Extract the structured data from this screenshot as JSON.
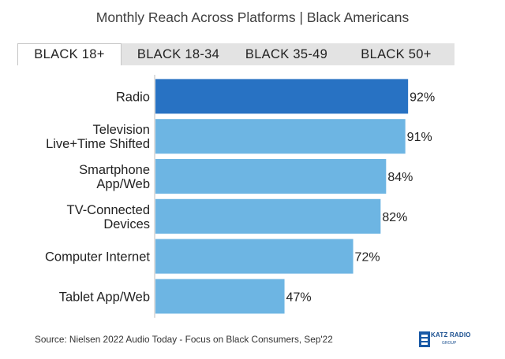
{
  "chart_data": {
    "type": "bar",
    "orientation": "horizontal",
    "title": "Monthly Reach Across Platforms | Black Americans",
    "categories": [
      [
        "Radio"
      ],
      [
        "Television",
        "Live+Time Shifted"
      ],
      [
        "Smartphone",
        "App/Web"
      ],
      [
        "TV-Connected",
        "Devices"
      ],
      [
        "Computer Internet"
      ],
      [
        "Tablet App/Web"
      ]
    ],
    "values": [
      92,
      91,
      84,
      82,
      72,
      47
    ],
    "value_labels": [
      "92%",
      "91%",
      "84%",
      "82%",
      "72%",
      "47%"
    ],
    "xlim": [
      0,
      100
    ],
    "highlight_index": 0,
    "colors": {
      "highlight": "#2872c3",
      "bar": "#6db5e3",
      "axis": "#bdbdbd",
      "text": "#222222"
    }
  },
  "tabs": [
    {
      "label": "BLACK 18+",
      "active": true
    },
    {
      "label": "BLACK 18-34",
      "active": false
    },
    {
      "label": "BLACK 35-49",
      "active": false
    },
    {
      "label": "BLACK 50+",
      "active": false
    }
  ],
  "source": "Source: Nielsen 2022 Audio Today - Focus on Black Consumers, Sep'22",
  "logo": {
    "name": "katz-radio-group-logo",
    "text": "KATZ RADIO",
    "sub": "GROUP"
  }
}
